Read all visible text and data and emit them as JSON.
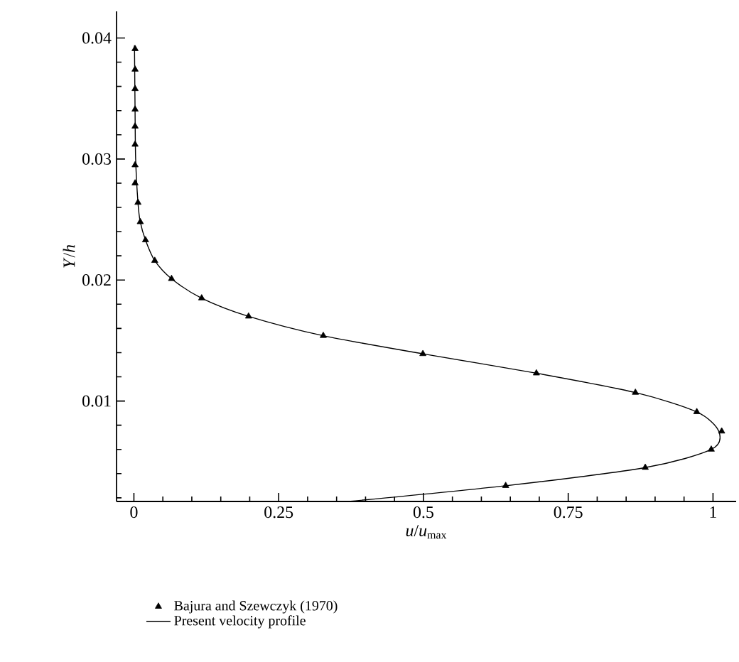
{
  "chart_data": {
    "type": "line",
    "xlabel": "*u*/*u*$_{max}$",
    "ylabel": "*Y*/*h*",
    "xlim": [
      -0.03,
      1.04
    ],
    "ylim": [
      0.0017,
      0.0422
    ],
    "xticks": [
      0,
      0.25,
      0.5,
      0.75,
      1,
      {
        "value": 0.05,
        "label": null
      },
      {
        "value": 0.1,
        "label": null
      },
      {
        "value": 0.15,
        "label": null
      },
      {
        "value": 0.2,
        "label": null
      },
      {
        "value": 0.3,
        "label": null
      },
      {
        "value": 0.35,
        "label": null
      },
      {
        "value": 0.4,
        "label": null
      },
      {
        "value": 0.45,
        "label": null
      },
      {
        "value": 0.55,
        "label": null
      },
      {
        "value": 0.6,
        "label": null
      },
      {
        "value": 0.65,
        "label": null
      },
      {
        "value": 0.7,
        "label": null
      },
      {
        "value": 0.8,
        "label": null
      },
      {
        "value": 0.85,
        "label": null
      },
      {
        "value": 0.9,
        "label": null
      },
      {
        "value": 0.95,
        "label": null
      }
    ],
    "yticks": [
      0.01,
      0.02,
      0.03,
      0.04,
      {
        "value": 0.002,
        "label": null
      },
      {
        "value": 0.004,
        "label": null
      },
      {
        "value": 0.006,
        "label": null
      },
      {
        "value": 0.008,
        "label": null
      },
      {
        "value": 0.012,
        "label": null
      },
      {
        "value": 0.014,
        "label": null
      },
      {
        "value": 0.016,
        "label": null
      },
      {
        "value": 0.018,
        "label": null
      },
      {
        "value": 0.022,
        "label": null
      },
      {
        "value": 0.024,
        "label": null
      },
      {
        "value": 0.026,
        "label": null
      },
      {
        "value": 0.028,
        "label": null
      },
      {
        "value": 0.032,
        "label": null
      },
      {
        "value": 0.034,
        "label": null
      },
      {
        "value": 0.036,
        "label": null
      },
      {
        "value": 0.038,
        "label": null
      }
    ],
    "legend": "bottom left",
    "grid": false,
    "series": [
      {
        "name": "Bajura and Szewczyk (1970)",
        "type": "scatter",
        "marker": "triangle",
        "color": "#000000",
        "x": [
          0.002,
          0.002,
          0.002,
          0.002,
          0.002,
          0.002,
          0.002,
          0.002,
          0.007,
          0.011,
          0.02,
          0.036,
          0.065,
          0.117,
          0.198,
          0.327,
          0.499,
          0.695,
          0.866,
          0.972,
          1.015,
          0.997,
          0.883,
          0.642
        ],
        "values": [
          0.0391,
          0.0374,
          0.0358,
          0.0341,
          0.0327,
          0.0312,
          0.0295,
          0.028,
          0.0264,
          0.0248,
          0.0233,
          0.0216,
          0.0201,
          0.0185,
          0.017,
          0.0154,
          0.0139,
          0.0123,
          0.0107,
          0.0091,
          0.0075,
          0.006,
          0.0045,
          0.003
        ]
      },
      {
        "name": "Present velocity profile",
        "type": "line",
        "marker": "none",
        "line_style": "solid",
        "color": "#000000",
        "x": [
          0.001,
          0.002,
          0.003,
          0.007,
          0.011,
          0.02,
          0.036,
          0.065,
          0.117,
          0.198,
          0.327,
          0.499,
          0.695,
          0.866,
          0.972,
          1.01,
          0.997,
          0.883,
          0.642,
          0.37
        ],
        "values": [
          0.0394,
          0.034,
          0.03,
          0.0264,
          0.0248,
          0.0233,
          0.0216,
          0.0201,
          0.0185,
          0.017,
          0.0154,
          0.0139,
          0.0123,
          0.0107,
          0.0091,
          0.0075,
          0.006,
          0.0045,
          0.003,
          0.0017
        ]
      }
    ]
  }
}
